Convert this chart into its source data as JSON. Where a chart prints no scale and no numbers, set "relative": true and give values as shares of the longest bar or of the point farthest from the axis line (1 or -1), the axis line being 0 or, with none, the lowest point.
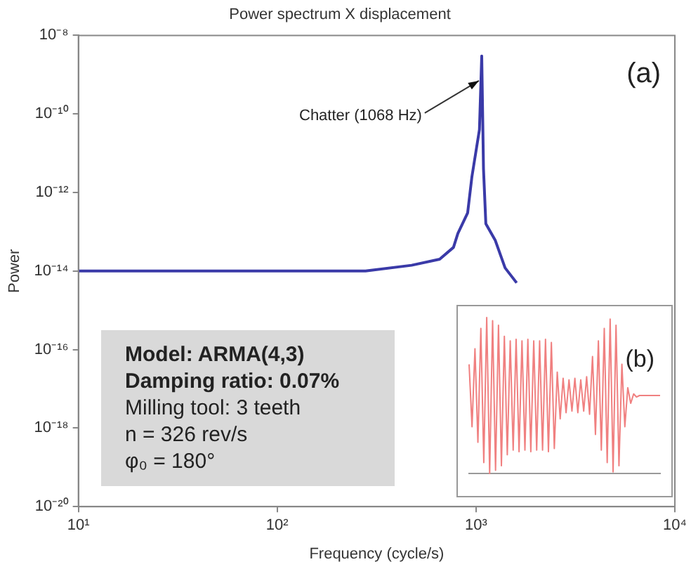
{
  "chart_data": [
    {
      "type": "line",
      "title": "Power spectrum X displacement",
      "xlabel": "Frequency (cycle/s)",
      "ylabel": "Power",
      "log": "xy",
      "grid": false,
      "legend": false,
      "xlim": [
        10,
        10000
      ],
      "xticks": [
        {
          "value": 10,
          "label": "10¹"
        },
        {
          "value": 100,
          "label": "10²"
        },
        {
          "value": 1000,
          "label": "10³"
        },
        {
          "value": 10000,
          "label": "10⁴"
        }
      ],
      "ylim": [
        1e-20,
        1e-08
      ],
      "yticks": [
        {
          "value": 1e-20,
          "label": "10⁻²⁰"
        },
        {
          "value": 1e-18,
          "label": "10⁻¹⁸"
        },
        {
          "value": 1e-16,
          "label": "10⁻¹⁶"
        },
        {
          "value": 1e-14,
          "label": "10⁻¹⁴"
        },
        {
          "value": 1e-12,
          "label": "10⁻¹²"
        },
        {
          "value": 1e-10,
          "label": "10⁻¹⁰"
        },
        {
          "value": 1e-08,
          "label": "10⁻⁸"
        }
      ],
      "series": [
        {
          "color": "#3a3aa8",
          "x": [
            10,
            100,
            210,
            278,
            474,
            656,
            770,
            810,
            907,
            953,
            1040,
            1068,
            1090,
            1120,
            1250,
            1400,
            1600
          ],
          "values": [
            1e-14,
            1e-14,
            1e-14,
            1e-14,
            1.4e-14,
            2e-14,
            4e-14,
            9e-14,
            3e-13,
            2.5e-12,
            4e-11,
            3e-09,
            4e-12,
            1.6e-13,
            6e-14,
            1.2e-14,
            5e-15
          ]
        }
      ],
      "annotations": [
        {
          "text": "Chatter (1068 Hz)",
          "x": 1068,
          "y": 7e-10
        },
        "(a)",
        "Model: ARMA(4,3)",
        "Damping ratio: 0.07%",
        "Milling tool: 3 teeth",
        "n = 326 rev/s",
        "φ₀ = 180°"
      ]
    },
    {
      "type": "line",
      "relative": true,
      "tick_labels": false,
      "annotations": [
        "(b)"
      ],
      "categories": [
        null,
        null,
        null,
        null,
        null,
        null,
        null,
        null,
        null,
        null,
        null,
        null,
        null,
        null,
        null,
        null,
        null,
        null,
        null,
        null,
        null,
        null,
        null,
        null,
        null,
        null,
        null,
        null,
        null,
        null,
        null,
        null,
        null,
        null,
        null,
        null,
        null,
        null,
        null,
        null,
        null,
        null,
        null,
        null,
        null,
        null,
        null,
        null,
        null,
        null,
        null,
        null,
        null,
        null,
        null,
        null,
        null,
        null,
        null,
        null,
        null,
        null,
        null,
        null,
        null,
        null
      ],
      "series": [
        {
          "color": "#f08080",
          "values": [
            0.7,
            0.3,
            0.8,
            0.2,
            0.93,
            0.07,
            1,
            0,
            0.98,
            0.02,
            0.95,
            0.05,
            0.88,
            0.12,
            0.85,
            0.15,
            0.86,
            0.14,
            0.85,
            0.15,
            0.86,
            0.14,
            0.85,
            0.15,
            0.85,
            0.15,
            0.86,
            0.14,
            0.84,
            0.16,
            0.65,
            0.35,
            0.61,
            0.39,
            0.6,
            0.4,
            0.61,
            0.39,
            0.6,
            0.4,
            0.62,
            0.38,
            0.75,
            0.25,
            0.85,
            0.15,
            0.93,
            0.07,
            0.99,
            0.01,
            0.95,
            0.05,
            0.7,
            0.3,
            0.55,
            0.45,
            0.51,
            0.49,
            0.5,
            0.5,
            0.5,
            0.5,
            0.5,
            0.5,
            0.5,
            0.5
          ]
        }
      ]
    }
  ]
}
